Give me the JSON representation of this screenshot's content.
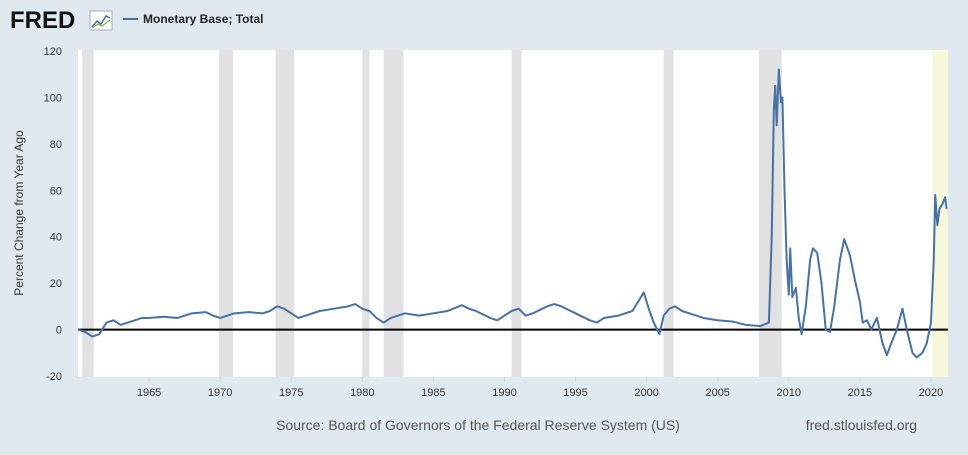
{
  "header": {
    "logo": "FRED"
  },
  "chart_data": {
    "type": "line",
    "ylabel": "Percent Change from Year Ago",
    "series": [
      {
        "name": "Monetary Base; Total",
        "color": "#4572a7",
        "x": [
          1960.0,
          1960.5,
          1961.0,
          1961.5,
          1962.0,
          1962.5,
          1963.0,
          1963.5,
          1964.0,
          1964.5,
          1965.0,
          1966.0,
          1967.0,
          1968.0,
          1969.0,
          1969.5,
          1970.0,
          1970.5,
          1971.0,
          1972.0,
          1973.0,
          1973.5,
          1974.0,
          1974.5,
          1975.0,
          1975.5,
          1976.0,
          1977.0,
          1978.0,
          1979.0,
          1979.5,
          1980.0,
          1980.5,
          1981.0,
          1981.5,
          1982.0,
          1983.0,
          1984.0,
          1985.0,
          1986.0,
          1987.0,
          1987.5,
          1988.0,
          1989.0,
          1989.5,
          1990.0,
          1990.5,
          1991.0,
          1991.5,
          1992.0,
          1993.0,
          1993.5,
          1994.0,
          1995.0,
          1996.0,
          1996.5,
          1997.0,
          1998.0,
          1999.0,
          1999.8,
          2000.2,
          2000.5,
          2000.9,
          2001.2,
          2001.6,
          2002.0,
          2002.5,
          2003.0,
          2004.0,
          2005.0,
          2006.0,
          2007.0,
          2008.0,
          2008.6,
          2008.8,
          2008.95,
          2009.05,
          2009.15,
          2009.3,
          2009.45,
          2009.55,
          2009.7,
          2009.85,
          2010.0,
          2010.1,
          2010.25,
          2010.5,
          2010.7,
          2010.9,
          2011.2,
          2011.5,
          2011.7,
          2012.0,
          2012.3,
          2012.6,
          2012.9,
          2013.2,
          2013.6,
          2013.9,
          2014.3,
          2014.7,
          2015.0,
          2015.2,
          2015.5,
          2015.8,
          2016.2,
          2016.6,
          2016.9,
          2017.2,
          2017.6,
          2018.0,
          2018.3,
          2018.7,
          2019.0,
          2019.4,
          2019.7,
          2020.0,
          2020.2,
          2020.3,
          2020.45,
          2020.6,
          2020.8,
          2021.0,
          2021.1
        ],
        "values": [
          0,
          -1,
          -3,
          -2,
          3,
          4,
          2,
          3,
          4,
          5,
          5,
          5.5,
          5,
          7,
          7.5,
          6,
          5,
          6,
          7,
          7.5,
          7,
          8,
          10,
          9,
          7,
          5,
          6,
          8,
          9,
          10,
          11,
          9,
          8,
          5,
          3,
          5,
          7,
          6,
          7,
          8,
          10.5,
          9,
          8,
          5,
          4,
          6,
          8,
          9,
          6,
          7,
          10,
          11,
          10,
          7,
          4,
          3,
          5,
          6,
          8,
          16,
          8,
          3,
          -2,
          6,
          9,
          10,
          8,
          7,
          5,
          4,
          3.5,
          2,
          1.5,
          3,
          40,
          95,
          105,
          88,
          112,
          98,
          100,
          60,
          30,
          15,
          35,
          14,
          18,
          5,
          -2,
          10,
          30,
          35,
          33,
          20,
          0,
          -1,
          10,
          30,
          39,
          32,
          20,
          12,
          3,
          4,
          0,
          5,
          -6,
          -11,
          -6,
          0,
          9,
          0,
          -10,
          -12,
          -10,
          -6,
          3,
          30,
          58,
          45,
          52,
          54,
          57,
          52
        ]
      }
    ],
    "recessions": [
      [
        1960.3,
        1961.1
      ],
      [
        1969.9,
        1970.9
      ],
      [
        1973.9,
        1975.2
      ],
      [
        1980.0,
        1980.5
      ],
      [
        1981.5,
        1982.9
      ],
      [
        1990.5,
        1991.2
      ],
      [
        2001.2,
        2001.9
      ],
      [
        2007.9,
        2009.5
      ]
    ],
    "highlight": [
      2020.1,
      2021.2
    ],
    "xlim": [
      1960.0,
      2021.2
    ],
    "xticks": [
      1965,
      1970,
      1975,
      1980,
      1985,
      1990,
      1995,
      2000,
      2005,
      2010,
      2015,
      2020
    ],
    "ylim": [
      -20,
      120
    ],
    "yticks": [
      -20,
      0,
      20,
      40,
      60,
      80,
      100,
      120
    ],
    "source": "Source: Board of Governors of the Federal Reserve System (US)",
    "site": "fred.stlouisfed.org"
  }
}
